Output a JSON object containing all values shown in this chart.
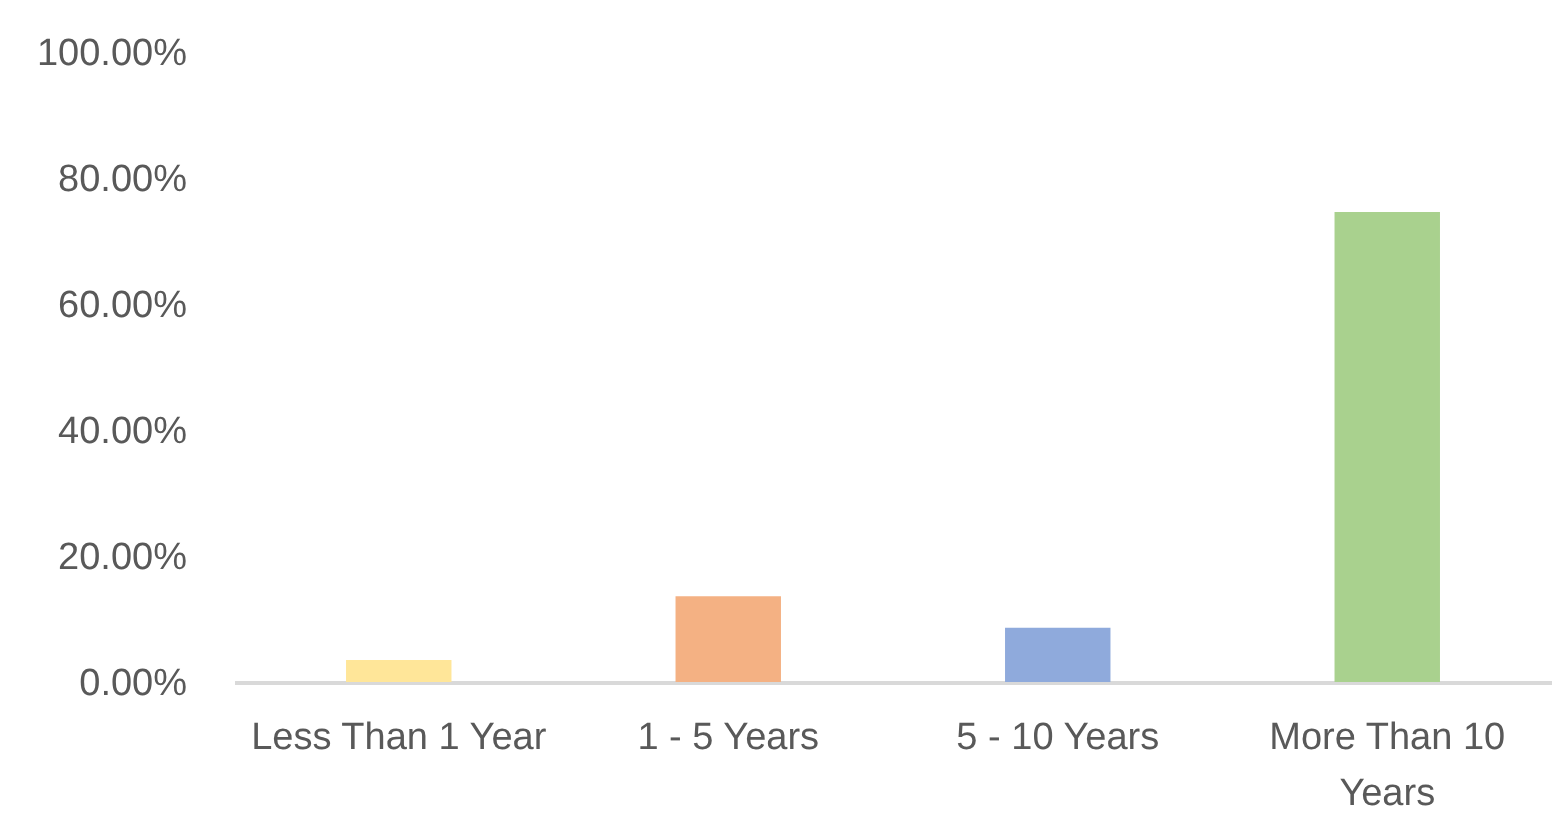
{
  "chart_data": {
    "type": "bar",
    "categories": [
      "Less Than 1 Year",
      "1 - 5 Years",
      "5 - 10 Years",
      "More Than 10 Years"
    ],
    "values": [
      3.5,
      13.6,
      8.6,
      74.6
    ],
    "colors": [
      "#ffe699",
      "#f4b183",
      "#8faadc",
      "#a9d18e"
    ],
    "ylim": [
      0,
      100
    ],
    "yticks": [
      {
        "value": 0,
        "label": "0.00%"
      },
      {
        "value": 20,
        "label": "20.00%"
      },
      {
        "value": 40,
        "label": "40.00%"
      },
      {
        "value": 60,
        "label": "60.00%"
      },
      {
        "value": 80,
        "label": "80.00%"
      },
      {
        "value": 100,
        "label": "100.00%"
      }
    ]
  }
}
